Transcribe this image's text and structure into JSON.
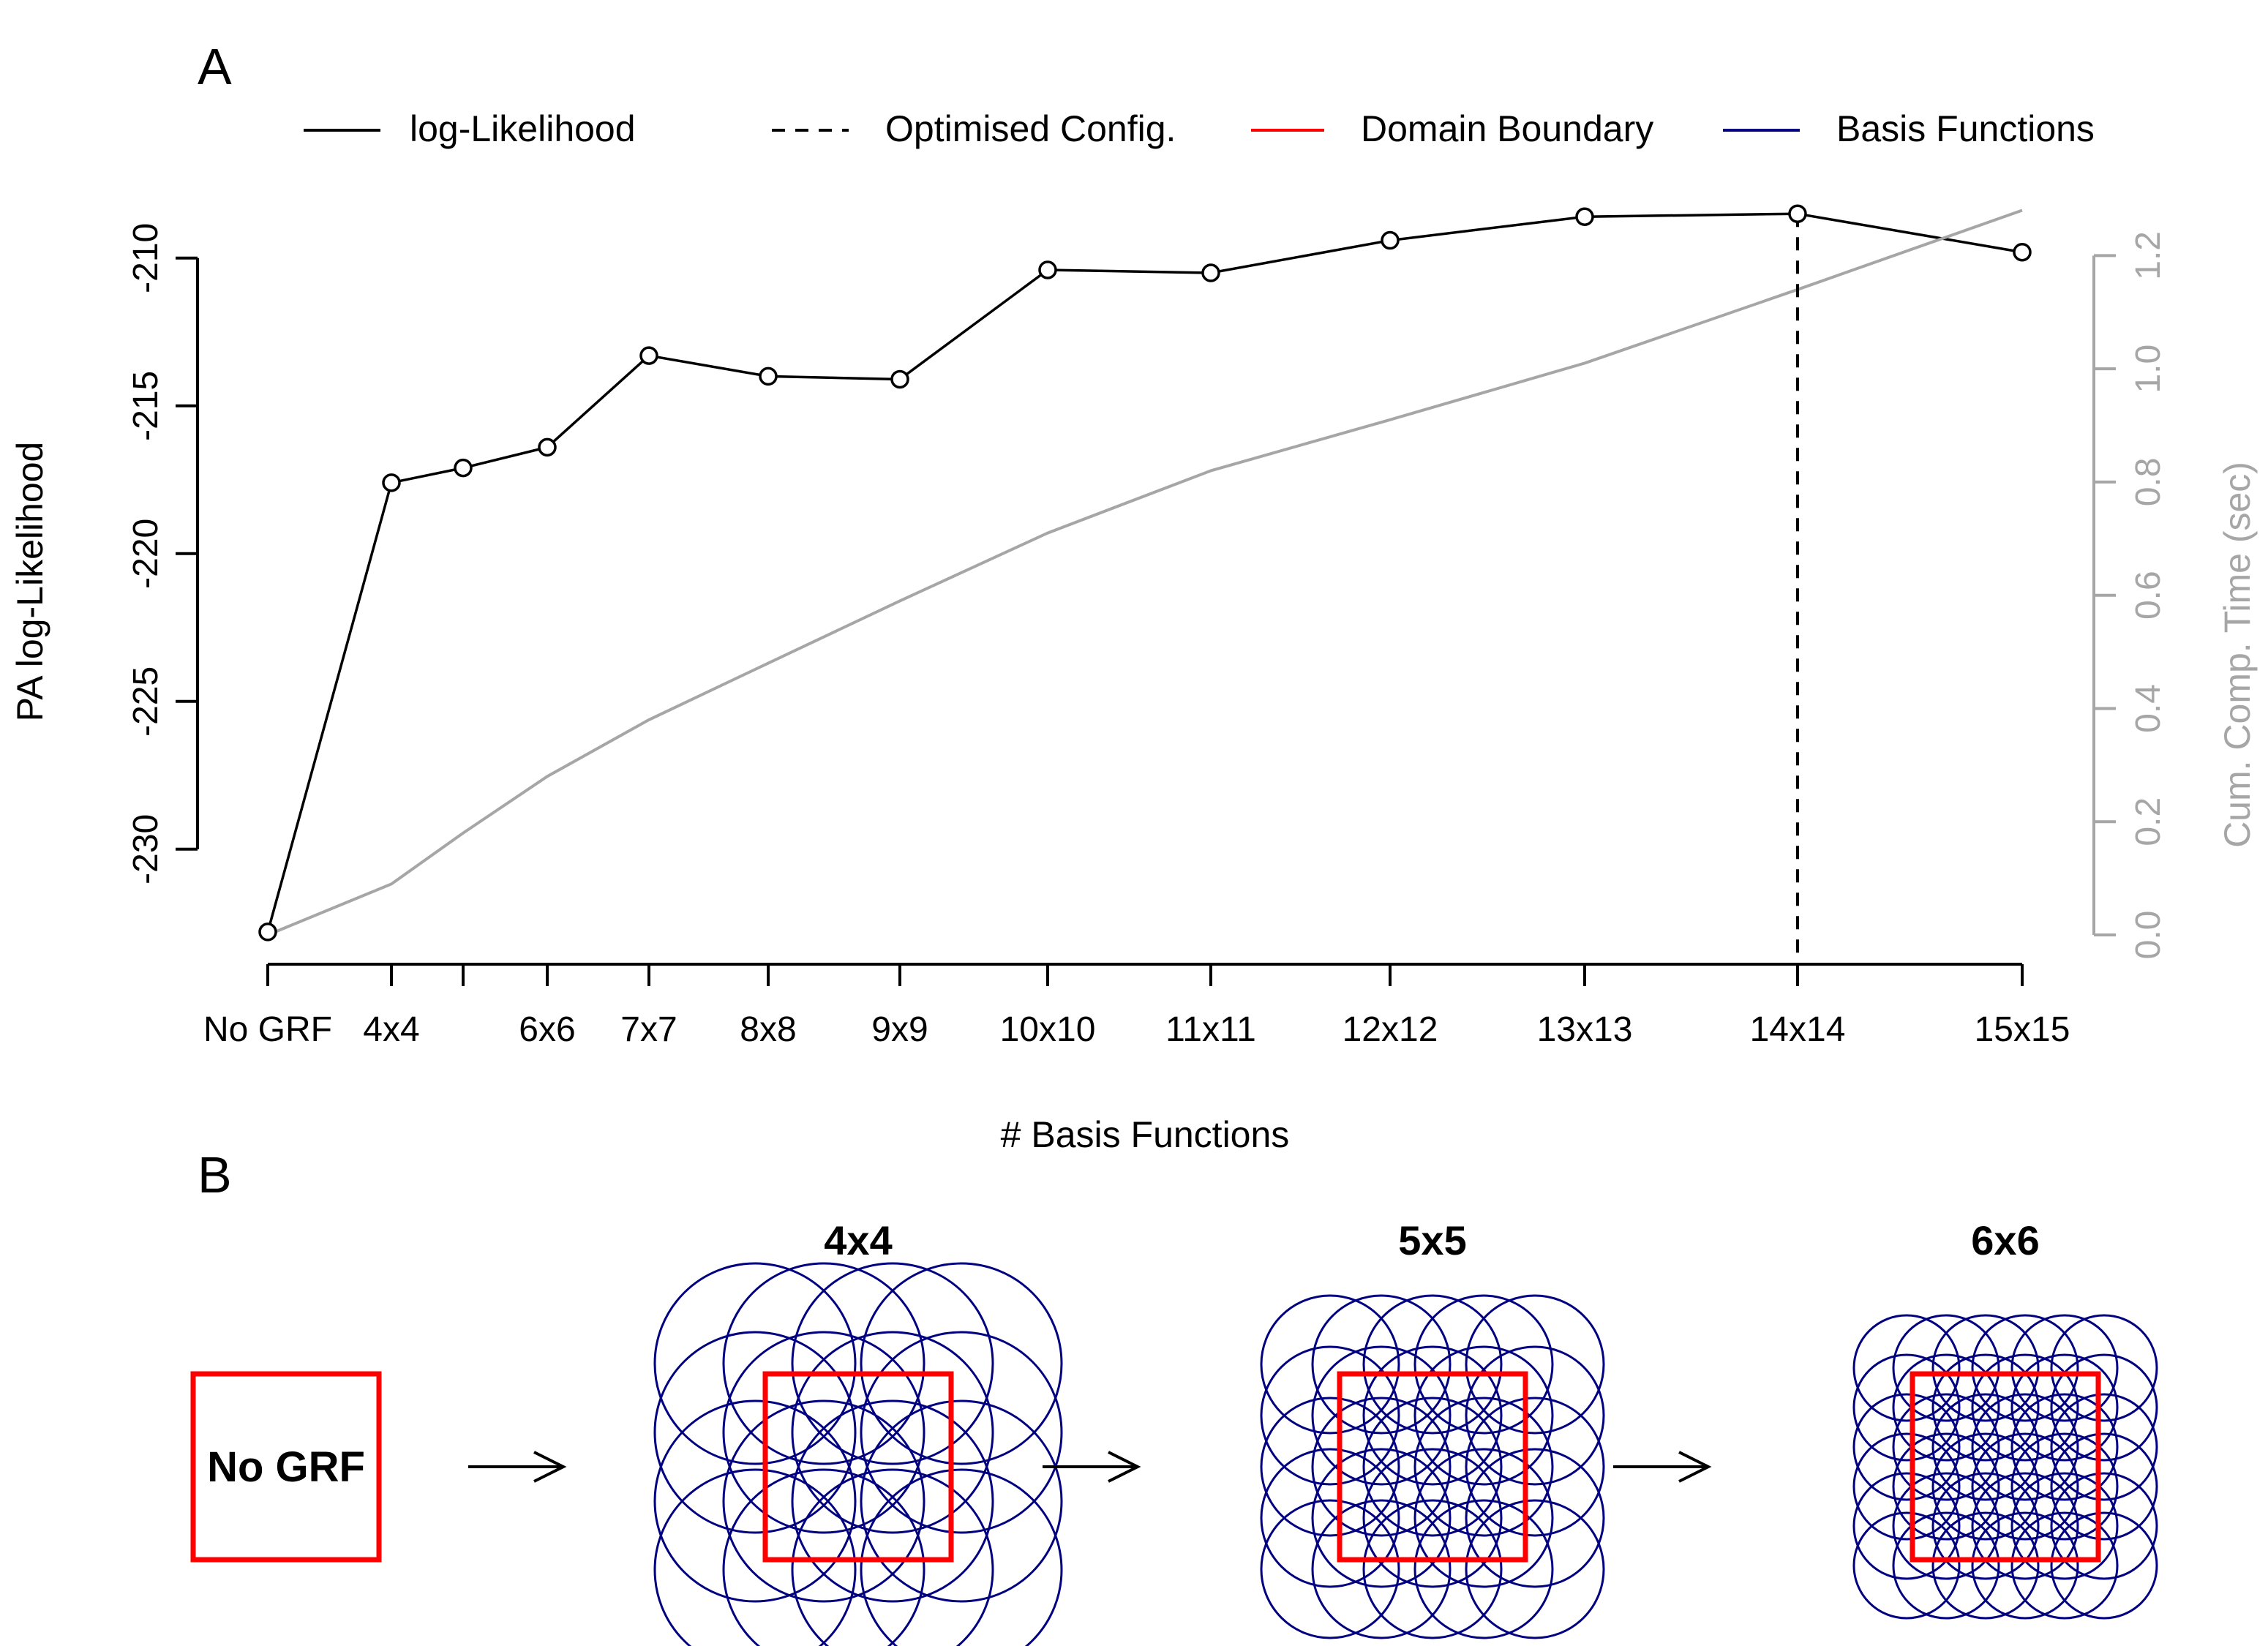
{
  "panels": {
    "a_label": "A",
    "b_label": "B"
  },
  "legend": [
    {
      "label": "log-Likelihood",
      "color": "#000000",
      "dash": "solid"
    },
    {
      "label": "Optimised Config.",
      "color": "#000000",
      "dash": "dashed"
    },
    {
      "label": "Domain Boundary",
      "color": "#ff0000",
      "dash": "solid"
    },
    {
      "label": "Basis Functions",
      "color": "#000080",
      "dash": "solid"
    }
  ],
  "chart_data": {
    "type": "line",
    "title": "",
    "xlabel": "# Basis Functions",
    "ylabel": "PA log-Likelihood",
    "ylabel_right": "Cum. Comp. Time (sec)",
    "x": [
      1,
      4,
      5,
      6,
      7,
      8,
      9,
      10,
      11,
      12,
      13,
      14,
      15
    ],
    "x_tick_labels": [
      "No GRF",
      "4x4",
      "",
      "6x6",
      "7x7",
      "8x8",
      "9x9",
      "10x10",
      "11x11",
      "12x12",
      "13x13",
      "14x14",
      "15x15"
    ],
    "ylim": [
      -233,
      -208
    ],
    "yticks": [
      -230,
      -225,
      -220,
      -215,
      -210
    ],
    "y2lim": [
      0,
      1.3
    ],
    "y2ticks": [
      0.0,
      0.2,
      0.4,
      0.6,
      0.8,
      1.0,
      1.2
    ],
    "series": [
      {
        "name": "log-Likelihood",
        "axis": "left",
        "color": "#000000",
        "markers": true,
        "values": [
          -232.8,
          -217.6,
          -217.1,
          -216.4,
          -213.3,
          -214.0,
          -214.1,
          -210.4,
          -210.5,
          -209.4,
          -208.6,
          -208.5,
          -209.8
        ]
      },
      {
        "name": "",
        "axis": "right",
        "color": "#a6a6a6",
        "markers": false,
        "values": [
          0.0,
          0.09,
          0.18,
          0.28,
          0.38,
          0.48,
          0.59,
          0.71,
          0.82,
          0.91,
          1.01,
          1.14,
          1.28
        ]
      }
    ],
    "vline": {
      "x": 14,
      "style": "dashed",
      "color": "#000000"
    },
    "grid": false,
    "legend_position": "top"
  },
  "diagram": {
    "arrow_symbol": "→",
    "panels": [
      {
        "title": "",
        "label": "No GRF",
        "n": 0
      },
      {
        "title": "4x4",
        "label": "",
        "n": 4
      },
      {
        "title": "5x5",
        "label": "",
        "n": 5
      },
      {
        "title": "6x6",
        "label": "",
        "n": 6
      }
    ],
    "boundary_color": "#ff0000",
    "basis_color": "#000080"
  }
}
